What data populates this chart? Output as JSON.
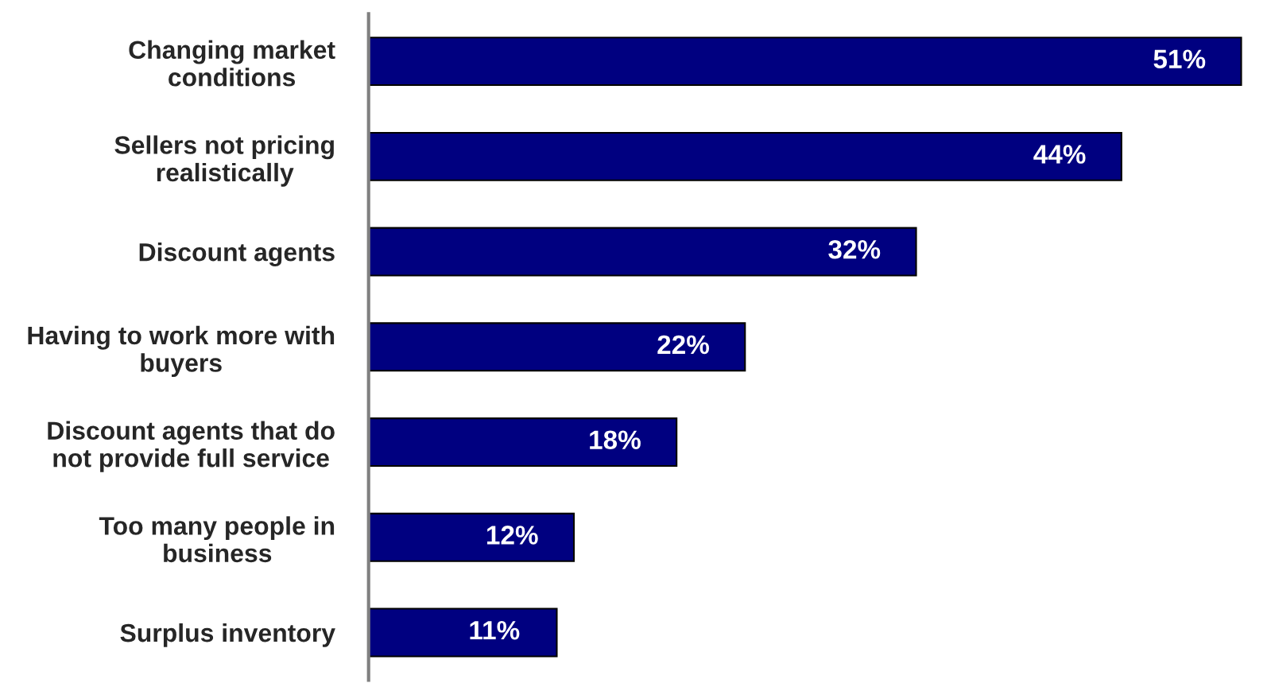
{
  "chart_data": {
    "type": "bar",
    "orientation": "horizontal",
    "categories": [
      "Changing market conditions",
      "Sellers not pricing realistically",
      "Discount agents",
      "Having to work more with buyers",
      "Discount agents that do not provide full service",
      "Too many people in business",
      "Surplus inventory"
    ],
    "values": [
      51,
      44,
      32,
      22,
      18,
      12,
      11
    ],
    "value_labels": [
      "51%",
      "44%",
      "32%",
      "22%",
      "18%",
      "12%",
      "11%"
    ],
    "color": "#000080",
    "grid": false
  }
}
